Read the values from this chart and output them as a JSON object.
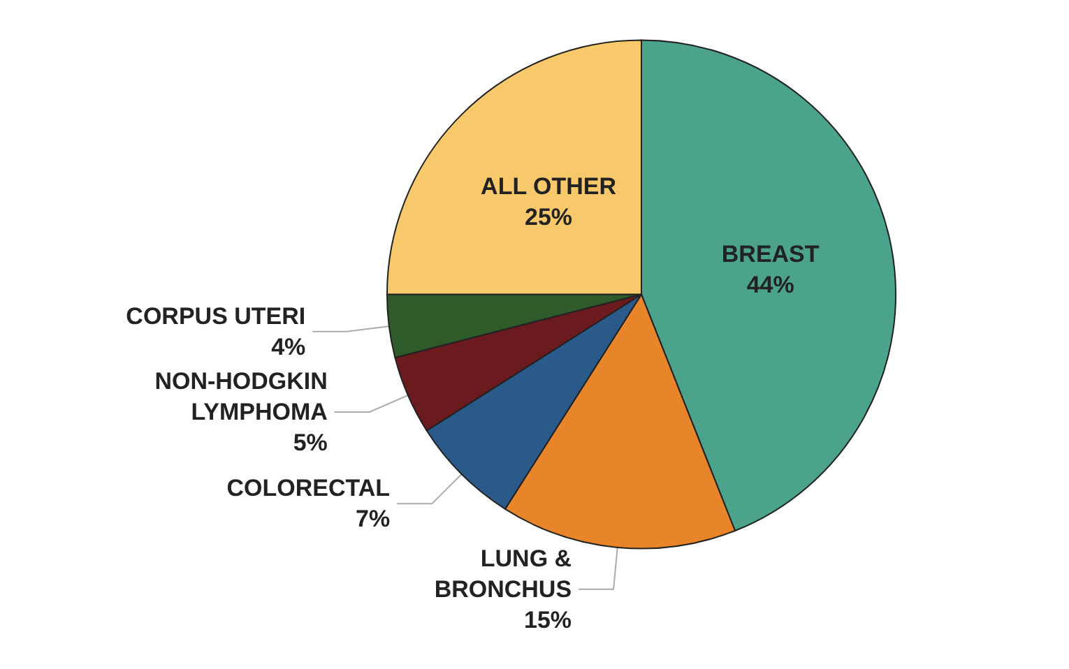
{
  "chart_data": {
    "type": "pie",
    "categories": [
      "BREAST",
      "LUNG &\nBRONCHUS",
      "COLORECTAL",
      "NON-HODGKIN\nLYMPHOMA",
      "CORPUS UTERI",
      "ALL OTHER"
    ],
    "values": [
      44,
      15,
      7,
      5,
      4,
      25
    ],
    "value_labels": [
      "44%",
      "15%",
      "7%",
      "5%",
      "4%",
      "25%"
    ],
    "colors": [
      "#4aa38a",
      "#e8852a",
      "#2a5a8a",
      "#6b1a1e",
      "#2f5a2a",
      "#f7c96a"
    ],
    "legend": false
  }
}
